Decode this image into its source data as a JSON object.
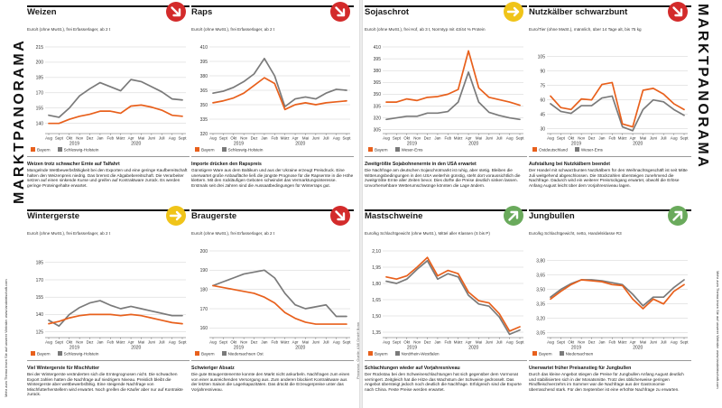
{
  "left_page": {
    "section_title": "MARKTPANORAMA",
    "side_note": "Mehr zum Thema lesen Sie auf unserer Website: www.landwirtschaft.com",
    "source": "Prognose, Quelle: AMI GmbH Bonn"
  },
  "right_page": {
    "section_title": "MARKTPANORAMA",
    "side_note": "Mehr zum Thema lesen Sie auf unserer Website: www.landwirtschaft.com"
  },
  "colors": {
    "orange": "#e8601c",
    "gray": "#7a7a7a",
    "red": "#d32b2b",
    "yellow": "#f0c419",
    "green": "#6aaa5c"
  },
  "panels": [
    {
      "id": "weizen",
      "title": "Weizen",
      "subtitle": "Euro/t (ohne MwSt.), frei Erfasserlager, ab 2 t",
      "trend": "down",
      "trend_color": "#d32b2b",
      "headline": "Weizen trotz schwacher Ernte auf Talfahrt",
      "body": "Mangelnde Wettbewerbsfähigkeit bei den Exporten und eine geringe Kaufbereitschaft halten den Weizenpreis niedrig. Das bremst die Abgabebereitschaft. Die Verarbeiter setzen auf einen sinkende Kurse und greifen auf Kontraktware zurück. Es werden geringe Proteingehalte erwartet.",
      "chart_data": {
        "type": "line",
        "title": "",
        "xlabel": "",
        "ylabel": "Euro/t (ohne MwSt.), frei Erfasserlager, ab 2 t",
        "ylim": [
          130,
          215
        ],
        "yticks": [
          140,
          155,
          170,
          185,
          200,
          215
        ],
        "categories": [
          "Aug",
          "Sept",
          "Okt",
          "Nov",
          "Dez",
          "Jan",
          "Feb",
          "März",
          "Apr",
          "Mai",
          "Juni",
          "Juli",
          "Aug",
          "Sept"
        ],
        "year_labels": [
          {
            "at": 2.5,
            "label": "2019"
          },
          {
            "at": 8.5,
            "label": "2020"
          }
        ],
        "series": [
          {
            "name": "Bayern",
            "color": "#e8601c",
            "values": [
              140,
              140,
              144,
              147,
              149,
              152,
              152,
              150,
              157,
              158,
              156,
              153,
              148,
              147
            ]
          },
          {
            "name": "Schleswig-Holstein",
            "color": "#7a7a7a",
            "values": [
              148,
              146,
              155,
              167,
              174,
              180,
              176,
              172,
              183,
              181,
              176,
              171,
              164,
              163
            ]
          }
        ]
      }
    },
    {
      "id": "raps",
      "title": "Raps",
      "subtitle": "Euro/t (ohne MwSt.), frei Erfasserlager, ab 2 t",
      "trend": "down",
      "trend_color": "#d32b2b",
      "headline": "Importe drücken den Rapspreis",
      "body": "Günstigere Ware aus dem Baltikum und aus der Ukraine erzeugt Preisdruck. Eine unerwartet große Anbaufläche ließ die jüngste Prognose für die Rapsernte in die Höhe klettern. Mit den rückläufigen Geboten schwindet das Vermarktungsinteresse. Erstmals seit drei Jahren sind die Aussaatbedingungen für Winterraps gut.",
      "chart_data": {
        "type": "line",
        "title": "",
        "xlabel": "",
        "ylabel": "Euro/t (ohne MwSt.), frei Erfasserlager, ab 2 t",
        "ylim": [
          320,
          410
        ],
        "yticks": [
          320,
          335,
          350,
          365,
          380,
          395,
          410
        ],
        "categories": [
          "Aug",
          "Sept",
          "Okt",
          "Nov",
          "Dez",
          "Jan",
          "Feb",
          "März",
          "Apr",
          "Mai",
          "Juni",
          "Juli",
          "Aug",
          "Sept"
        ],
        "year_labels": [
          {
            "at": 2.5,
            "label": "2019"
          },
          {
            "at": 8.5,
            "label": "2020"
          }
        ],
        "series": [
          {
            "name": "Bayern",
            "color": "#e8601c",
            "values": [
              352,
              354,
              357,
              362,
              370,
              378,
              372,
              345,
              350,
              352,
              350,
              352,
              353,
              354
            ]
          },
          {
            "name": "Schleswig-Holstein",
            "color": "#7a7a7a",
            "values": [
              362,
              364,
              368,
              374,
              382,
              398,
              380,
              348,
              356,
              358,
              356,
              362,
              366,
              365
            ]
          }
        ]
      }
    },
    {
      "id": "wintergerste",
      "title": "Wintergerste",
      "subtitle": "Euro/t (ohne MwSt.), frei Erfasserlager, ab 2 t",
      "trend": "flat",
      "trend_color": "#f0c419",
      "headline": "Viel Wintergerste für Mischfutter",
      "body": "Bei der Wintergerste veränderten sich die Erntegrognosen nicht. Die schwachen Export zahlen hatten die Nachfrage auf niedrigem Niveau. Preislich bleibt die Wintergerste aber wettbewerbsfähig. Eine steigende Nachfrage von Mischfutterherstellern wird erwartet. Noch greifen die Käufer aber nur auf Kontrakte zurück.",
      "chart_data": {
        "type": "line",
        "title": "",
        "xlabel": "",
        "ylabel": "Euro/t (ohne MwSt.), frei Erfasserlager, ab 2 t",
        "ylim": [
          120,
          195
        ],
        "yticks": [
          125,
          140,
          155,
          170,
          185
        ],
        "categories": [
          "Aug",
          "Sept",
          "Okt",
          "Nov",
          "Dez",
          "Jan",
          "Feb",
          "März",
          "Apr",
          "Mai",
          "Juni",
          "Juli",
          "Aug",
          "Sept"
        ],
        "year_labels": [
          {
            "at": 2.5,
            "label": "2019"
          },
          {
            "at": 8.5,
            "label": "2020"
          }
        ],
        "series": [
          {
            "name": "Bayern",
            "color": "#e8601c",
            "values": [
              132,
              134,
              137,
              139,
              140,
              140,
              140,
              139,
              140,
              139,
              137,
              135,
              133,
              132
            ]
          },
          {
            "name": "Schleswig-Holstein",
            "color": "#7a7a7a",
            "values": [
              135,
              130,
              140,
              146,
              150,
              152,
              148,
              145,
              147,
              145,
              143,
              141,
              139,
              139
            ]
          }
        ]
      }
    },
    {
      "id": "braugerste",
      "title": "Braugerste",
      "subtitle": "Euro/t (ohne MwSt.), frei Erfasserlager, ab 2 t",
      "trend": "down",
      "trend_color": "#d32b2b",
      "headline": "Schwieriger Absatz",
      "body": "Die gute Braugerstenernte konnte den Markt nicht ankurbeln. Nachfragen zum einen von einer ausreichenden Versorgung aus. Zum anderen blockiert Kontraktware aus der letzten Saison die Lagerkapazitäten. Das drückt die Erzeugerpreise unter das Vorjahresniveau.",
      "chart_data": {
        "type": "line",
        "title": "",
        "xlabel": "",
        "ylabel": "Euro/t (ohne MwSt.), frei Erfasserlager, ab 2 t",
        "ylim": [
          155,
          200
        ],
        "yticks": [
          160,
          170,
          180,
          190,
          200
        ],
        "categories": [
          "Aug",
          "Sept",
          "Okt",
          "Nov",
          "Dez",
          "Jan",
          "Feb",
          "März",
          "Apr",
          "Mai",
          "Juni",
          "Juli",
          "Aug",
          "Sept"
        ],
        "year_labels": [
          {
            "at": 2.5,
            "label": "2019"
          },
          {
            "at": 8.5,
            "label": "2020"
          }
        ],
        "series": [
          {
            "name": "Bayern",
            "color": "#e8601c",
            "values": [
              182,
              181,
              180,
              179,
              178,
              176,
              173,
              168,
              165,
              163,
              162,
              162,
              162,
              162
            ]
          },
          {
            "name": "Niedersachsen Ost",
            "color": "#7a7a7a",
            "values": [
              182,
              184,
              186,
              188,
              189,
              190,
              186,
              178,
              172,
              170,
              171,
              172,
              166,
              166
            ]
          }
        ]
      }
    },
    {
      "id": "sojaschrot",
      "title": "Sojaschrot",
      "subtitle": "Euro/t (ohne MwSt.), frei Hof, ab 3 t, Normtyp mit 43/44 % Protein",
      "trend": "flat",
      "trend_color": "#f0c419",
      "headline": "Zweitgrößte Sojabohnenernte in den USA erwartet",
      "body": "Die Nachfrage am deutschen Sojaschrotmarkt ist ruhig, aber stetig. Bleiben die Witterungsbedingungen in den USA weiterhin günstig, steht dort voraussichtlich die zweitgrößte Ernte aller Zeiten bevor. Dies dürfte die Preise deutlich sinken lassen. Unvorhersehbare Wetterumschwünge könnten die Lage ändern.",
      "chart_data": {
        "type": "line",
        "title": "",
        "xlabel": "",
        "ylabel": "Euro/t (ohne MwSt.), frei Hof, ab 3 t, Normtyp mit 43/44 % Protein",
        "ylim": [
          300,
          410
        ],
        "yticks": [
          305,
          320,
          335,
          350,
          365,
          380,
          395,
          410
        ],
        "categories": [
          "Aug",
          "Sept",
          "Okt",
          "Nov",
          "Dez",
          "Jan",
          "Feb",
          "März",
          "Apr",
          "Mai",
          "Juni",
          "Juli",
          "Aug",
          "Sept"
        ],
        "year_labels": [
          {
            "at": 2.5,
            "label": "2019"
          },
          {
            "at": 8.5,
            "label": "2020"
          }
        ],
        "series": [
          {
            "name": "Bayern",
            "color": "#e8601c",
            "values": [
              340,
              340,
              344,
              342,
              346,
              347,
              350,
              356,
              405,
              358,
              346,
              343,
              340,
              336
            ]
          },
          {
            "name": "Weser-Ems",
            "color": "#7a7a7a",
            "values": [
              318,
              320,
              322,
              322,
              326,
              326,
              328,
              340,
              378,
              340,
              327,
              323,
              320,
              318
            ]
          }
        ]
      }
    },
    {
      "id": "nutzkaelber",
      "title": "Nutzkälber schwarzbunt",
      "subtitle": "Euro/Tier (ohne MwSt.), männlich, über 14 Tage alt, bis 75 kg",
      "trend": "down",
      "trend_color": "#d32b2b",
      "headline": "Aufstallung bei Nutzkälbern beendet",
      "body": "Der Handel mit schwarzbunten Nutzkälbern für den Weihnachtsgeschäft ist seit Mitte Juli weitgehend abgeschlossen. Die Stückzahlen übersteigen zunehmend die Nachfrage. Dadurch wird ein weiterer Preisrückgang erwartet, obwohl die Erlöse Anfang August leicht über dem Vorjahresniveau lagen.",
      "chart_data": {
        "type": "line",
        "title": "",
        "xlabel": "",
        "ylabel": "Euro/Tier (ohne MwSt.), männlich, über 14 Tage alt, bis 75 kg",
        "ylim": [
          25,
          115
        ],
        "yticks": [
          30,
          45,
          60,
          75,
          90,
          105
        ],
        "categories": [
          "Aug",
          "Sept",
          "Okt",
          "Nov",
          "Dez",
          "Jan",
          "Feb",
          "März",
          "Apr",
          "Mai",
          "Juni",
          "Juli",
          "Aug",
          "Sept"
        ],
        "year_labels": [
          {
            "at": 2.5,
            "label": "2019"
          },
          {
            "at": 8.5,
            "label": "2020"
          }
        ],
        "series": [
          {
            "name": "Ostdeutschland",
            "color": "#e8601c",
            "values": [
              64,
              52,
              50,
              61,
              60,
              76,
              78,
              35,
              32,
              70,
              72,
              66,
              56,
              50
            ]
          },
          {
            "name": "Weser-Ems",
            "color": "#7a7a7a",
            "values": [
              56,
              48,
              46,
              54,
              54,
              62,
              64,
              32,
              28,
              50,
              60,
              58,
              50,
              44
            ]
          }
        ]
      }
    },
    {
      "id": "mastschweine",
      "title": "Mastschweine",
      "subtitle": "Euro/kg Schlachtgewicht (ohne MwSt.), Mittel aller Klassen (S bis P)",
      "trend": "up",
      "trend_color": "#6aaa5c",
      "headline": "Schlachtungen wieder auf Vorjahresniveau",
      "body": "Der Rückstau bei den Schweineschlachtungen hat sich gegenüber dem Vormonat verringert. Zeitgleich hat die Hitze das Wachstum der Schweine gedrosselt. Das Angebot übersteigt jedoch noch deutlich die Nachfrage. Erfolgreich sind die Exporte nach China. Feste Preise werden erwartet.",
      "chart_data": {
        "type": "line",
        "title": "",
        "xlabel": "",
        "ylabel": "Euro/kg Schlachtgewicht (ohne MwSt.), Mittel aller Klassen (S bis P)",
        "ylim": [
          1.3,
          2.1
        ],
        "yticks": [
          1.35,
          1.5,
          1.65,
          1.8,
          1.95,
          2.1
        ],
        "categories": [
          "Aug",
          "Sept",
          "Okt",
          "Nov",
          "Dez",
          "Jan",
          "Feb",
          "März",
          "Apr",
          "Mai",
          "Juni",
          "Juli",
          "Aug",
          "Sept"
        ],
        "year_labels": [
          {
            "at": 2.5,
            "label": "2019"
          },
          {
            "at": 8.5,
            "label": "2020"
          }
        ],
        "series": [
          {
            "name": "Bayern",
            "color": "#e8601c",
            "values": [
              1.86,
              1.84,
              1.87,
              1.95,
              2.04,
              1.87,
              1.92,
              1.89,
              1.72,
              1.64,
              1.62,
              1.52,
              1.36,
              1.4
            ]
          },
          {
            "name": "Nordrhein-Westfalen",
            "color": "#7a7a7a",
            "values": [
              1.82,
              1.8,
              1.84,
              1.93,
              2.01,
              1.84,
              1.89,
              1.86,
              1.69,
              1.61,
              1.59,
              1.49,
              1.33,
              1.37
            ]
          }
        ]
      }
    },
    {
      "id": "jungbullen",
      "title": "Jungbullen",
      "subtitle": "Euro/kg Schlachtgewicht, netto, Handelsklasse R3",
      "trend": "up",
      "trend_color": "#6aaa5c",
      "headline": "Unerwartet früher Preisanstieg für Jungbullen",
      "body": "Durch das kleine Angebot stiegen die Preise für Jungbullen Anfang August deutlich und stabilisierten sich in der Monatsmitte. Trotz des üblicherweise geringen Rindfleischverzehrs im Sommer war die Nachfrage aus der Gastronomie überraschend stark. Für den September ist eine erhöhte Nachfrage zu erwarten.",
      "chart_data": {
        "type": "line",
        "title": "",
        "xlabel": "",
        "ylabel": "Euro/kg Schlachtgewicht, netto, Handelsklasse R3",
        "ylim": [
          3.0,
          3.9
        ],
        "yticks": [
          3.05,
          3.2,
          3.35,
          3.5,
          3.65,
          3.8
        ],
        "categories": [
          "Aug",
          "Sept",
          "Okt",
          "Nov",
          "Dez",
          "Jan",
          "Feb",
          "März",
          "Apr",
          "Mai",
          "Juni",
          "Juli",
          "Aug",
          "Sept"
        ],
        "year_labels": [
          {
            "at": 2.5,
            "label": "2019"
          },
          {
            "at": 8.5,
            "label": "2020"
          }
        ],
        "series": [
          {
            "name": "Bayern",
            "color": "#e8601c",
            "values": [
              3.4,
              3.48,
              3.55,
              3.6,
              3.59,
              3.58,
              3.55,
              3.54,
              3.4,
              3.3,
              3.4,
              3.35,
              3.48,
              3.55
            ]
          },
          {
            "name": "Niedersachsen",
            "color": "#7a7a7a",
            "values": [
              3.42,
              3.5,
              3.56,
              3.6,
              3.6,
              3.59,
              3.57,
              3.55,
              3.45,
              3.33,
              3.42,
              3.42,
              3.52,
              3.6
            ]
          }
        ]
      }
    }
  ]
}
